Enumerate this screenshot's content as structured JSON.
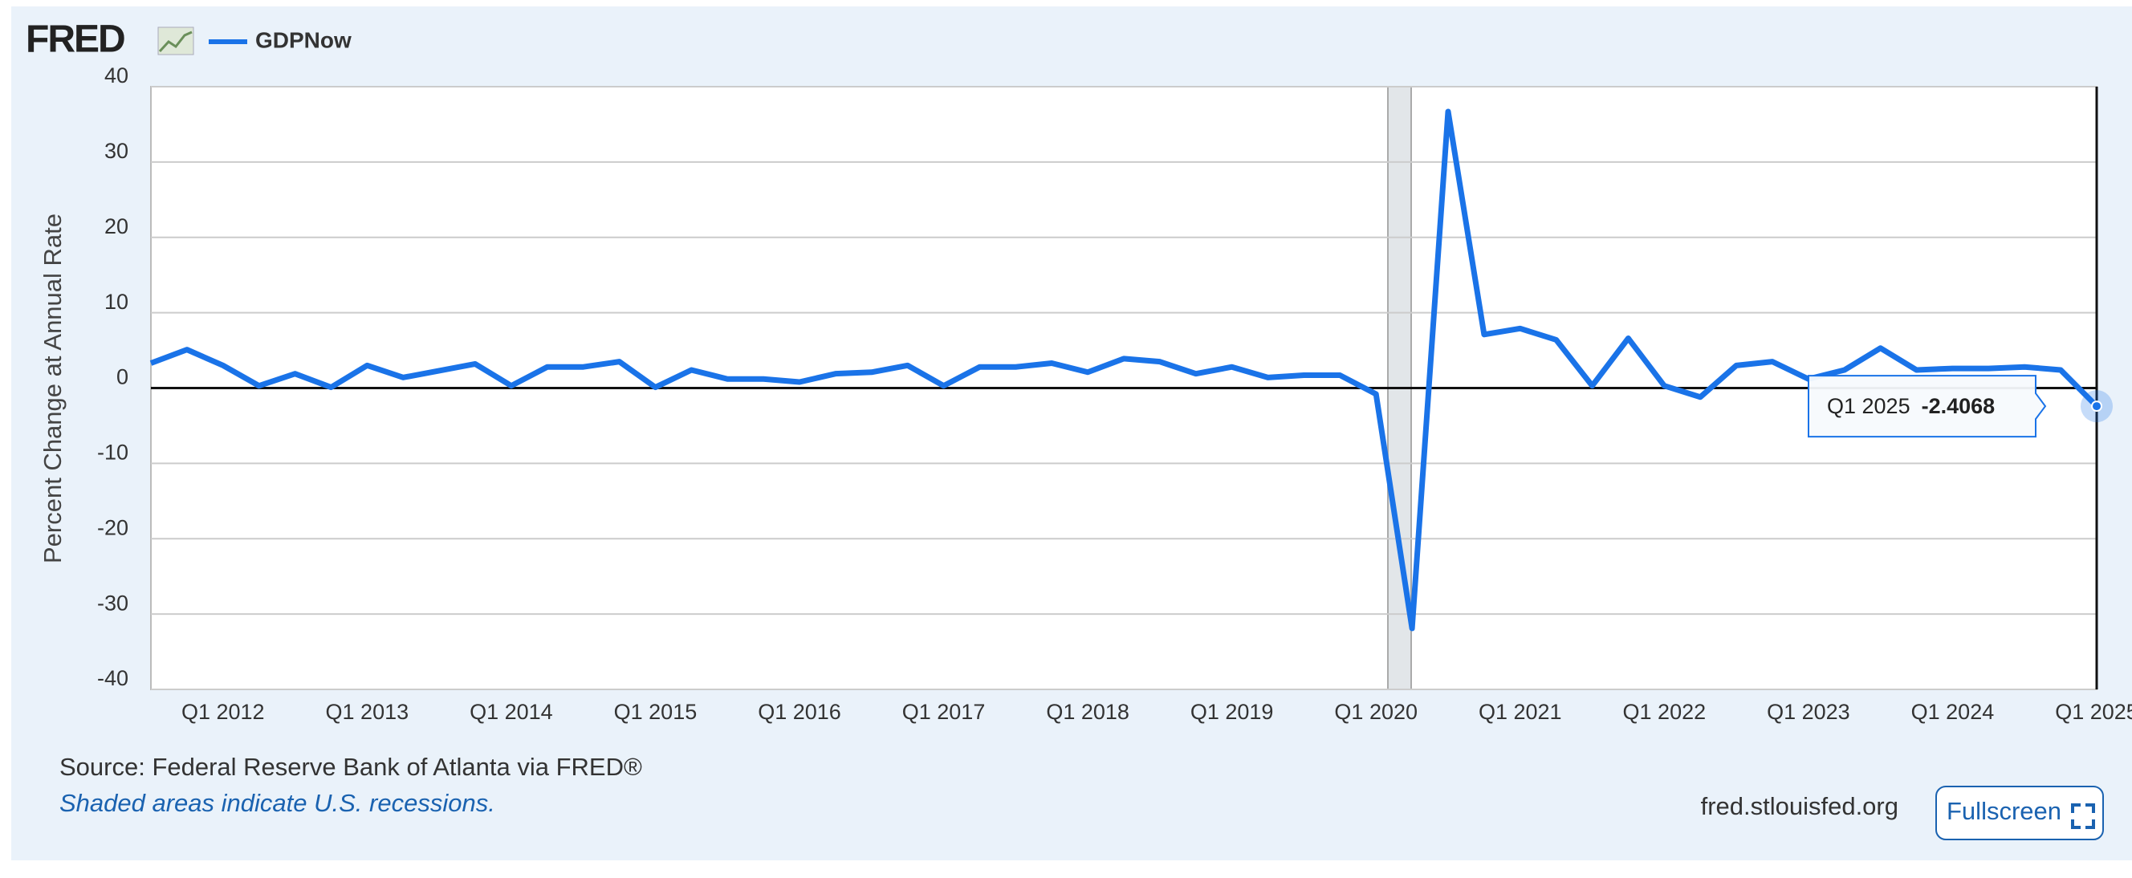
{
  "header": {
    "logo": "FRED"
  },
  "chart_data": {
    "type": "line",
    "y_label": "Percent Change at Annual Rate",
    "categories": [
      null,
      null,
      "Q1 2012",
      null,
      null,
      null,
      "Q1 2013",
      null,
      null,
      null,
      "Q1 2014",
      null,
      null,
      null,
      "Q1 2015",
      null,
      null,
      null,
      "Q1 2016",
      null,
      null,
      null,
      "Q1 2017",
      null,
      null,
      null,
      "Q1 2018",
      null,
      null,
      null,
      "Q1 2019",
      null,
      null,
      null,
      "Q1 2020",
      null,
      null,
      null,
      "Q1 2021",
      null,
      null,
      null,
      "Q1 2022",
      null,
      null,
      null,
      "Q1 2023",
      null,
      null,
      null,
      "Q1 2024",
      null,
      null,
      null,
      "Q1 2025"
    ],
    "series": [
      {
        "name": "GDPNow",
        "color": "#1a73e8",
        "values": [
          3.3,
          5.1,
          3.0,
          0.3,
          1.9,
          0.1,
          3.0,
          1.4,
          2.3,
          3.2,
          0.3,
          2.8,
          2.8,
          3.5,
          0.1,
          2.4,
          1.2,
          1.2,
          0.8,
          1.9,
          2.1,
          3.0,
          0.3,
          2.8,
          2.8,
          3.3,
          2.1,
          3.9,
          3.5,
          1.9,
          2.8,
          1.4,
          1.7,
          1.7,
          -0.8,
          -31.9,
          36.7,
          7.1,
          7.9,
          6.4,
          0.3,
          6.6,
          0.3,
          -1.2,
          3.0,
          3.5,
          1.2,
          2.4,
          5.3,
          2.4,
          2.6,
          2.6,
          2.8,
          2.4,
          -2.4068
        ]
      }
    ],
    "ylim": [
      -40,
      40
    ],
    "yticks": [
      -40,
      -30,
      -20,
      -10,
      0,
      10,
      20,
      30,
      40
    ],
    "grid": true
  },
  "footer": {
    "source": "Source: Federal Reserve Bank of Atlanta via FRED®",
    "note": "Shaded areas indicate U.S. recessions.",
    "site": "fred.stlouisfed.org",
    "button": "Fullscreen"
  }
}
